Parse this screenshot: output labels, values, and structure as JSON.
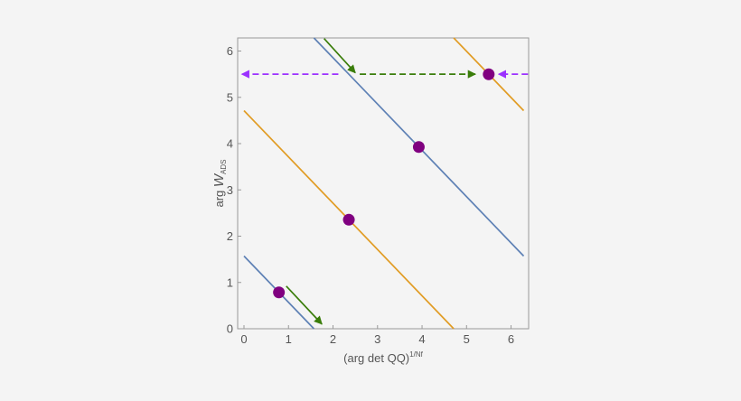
{
  "chart_data": {
    "type": "line",
    "title": "",
    "xlabel": {
      "base": "(arg det QQ)",
      "superscript": "1/Nf"
    },
    "ylabel": {
      "base": "arg ",
      "main": "W",
      "subscript": "ADS"
    },
    "xlim": [
      0,
      6.2832
    ],
    "ylim": [
      0,
      6.2832
    ],
    "xticks": [
      "0",
      "1",
      "2",
      "3",
      "4",
      "5",
      "6"
    ],
    "yticks": [
      "0",
      "1",
      "2",
      "3",
      "4",
      "5",
      "6"
    ],
    "grid": false,
    "legend": "none",
    "series": [
      {
        "color": "#5e81b5",
        "points": [
          [
            0,
            1.5708
          ],
          [
            1.5708,
            0
          ]
        ]
      },
      {
        "color": "#e19c24",
        "points": [
          [
            0,
            4.7124
          ],
          [
            4.7124,
            0
          ]
        ]
      },
      {
        "color": "#5e81b5",
        "points": [
          [
            1.5708,
            6.2832
          ],
          [
            6.2832,
            1.5708
          ]
        ]
      },
      {
        "color": "#e19c24",
        "points": [
          [
            4.7124,
            6.2832
          ],
          [
            6.2832,
            4.7124
          ]
        ]
      }
    ],
    "markers": {
      "color": "#800080",
      "points": [
        [
          0.785,
          0.785
        ],
        [
          2.356,
          2.356
        ],
        [
          3.927,
          3.927
        ],
        [
          5.498,
          5.498
        ]
      ]
    },
    "arrows": [
      {
        "color": "#3a7d0a",
        "dash": false,
        "from": [
          0.95,
          0.92
        ],
        "to": [
          1.75,
          0.1
        ]
      },
      {
        "color": "#3a7d0a",
        "dash": false,
        "from": [
          1.8,
          6.27
        ],
        "to": [
          2.5,
          5.53
        ]
      },
      {
        "color": "#3a7d0a",
        "dash": true,
        "from": [
          2.6,
          5.5
        ],
        "to": [
          5.2,
          5.5
        ]
      },
      {
        "color": "#9b30ff",
        "dash": true,
        "from": [
          2.12,
          5.5
        ],
        "to": [
          -0.05,
          5.5
        ]
      },
      {
        "color": "#9b30ff",
        "dash": true,
        "from": [
          6.38,
          5.5
        ],
        "to": [
          5.72,
          5.5
        ]
      }
    ]
  },
  "colors": {
    "frame": "#999999",
    "background": "#f4f4f4"
  }
}
